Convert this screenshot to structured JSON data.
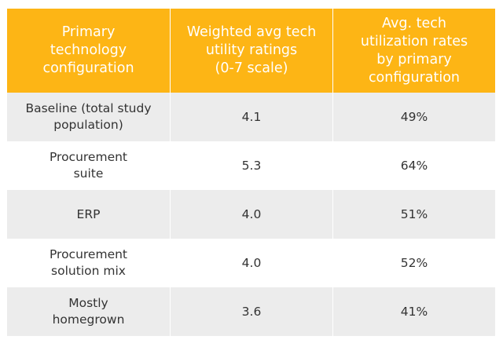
{
  "table": {
    "headers": [
      "Primary\ntechnology\nconfiguration",
      "Weighted avg tech\nutility ratings\n(0-7 scale)",
      "Avg. tech\nutilization rates\nby primary\nconfiguration"
    ],
    "rows": [
      {
        "config": "Baseline (total study\npopulation)",
        "rating": "4.1",
        "utilization": "49%"
      },
      {
        "config": "Procurement\nsuite",
        "rating": "5.3",
        "utilization": "64%"
      },
      {
        "config": "ERP",
        "rating": "4.0",
        "utilization": "51%"
      },
      {
        "config": "Procurement\nsolution mix",
        "rating": "4.0",
        "utilization": "52%"
      },
      {
        "config": "Mostly\nhomegrown",
        "rating": "3.6",
        "utilization": "41%"
      }
    ]
  },
  "colors": {
    "header_bg": "#fdb515",
    "header_text": "#ffffff",
    "row_shaded": "#ececec",
    "row_plain": "#ffffff",
    "body_text": "#333333"
  }
}
